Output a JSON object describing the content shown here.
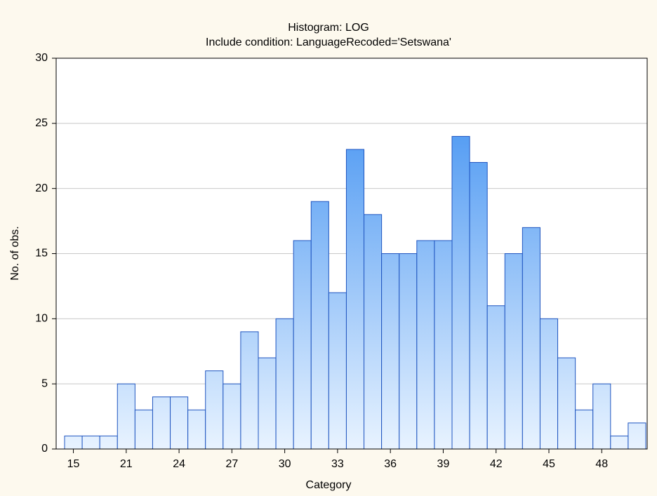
{
  "chart_data": {
    "type": "bar",
    "title": "Histogram: LOG",
    "subtitle": "Include condition: LanguageRecoded='Setswana'",
    "x_label": "Category",
    "y_label": "No. of obs.",
    "categories": [
      "15",
      null,
      null,
      "21",
      null,
      null,
      "24",
      null,
      null,
      "27",
      null,
      null,
      "30",
      null,
      null,
      "33",
      null,
      null,
      "36",
      null,
      null,
      "39",
      null,
      null,
      "42",
      null,
      null,
      "45",
      null,
      null,
      "48",
      null,
      null
    ],
    "values": [
      1,
      1,
      1,
      5,
      3,
      4,
      4,
      3,
      6,
      5,
      9,
      7,
      10,
      16,
      19,
      12,
      23,
      18,
      15,
      15,
      16,
      16,
      24,
      22,
      11,
      15,
      17,
      10,
      7,
      3,
      5,
      1,
      2
    ],
    "color": "#3389f0",
    "edge_color": "#1f55c0",
    "ylim": [
      0,
      30
    ],
    "yticks": [
      0,
      5,
      10,
      15,
      20,
      25,
      30
    ],
    "grid": true
  }
}
